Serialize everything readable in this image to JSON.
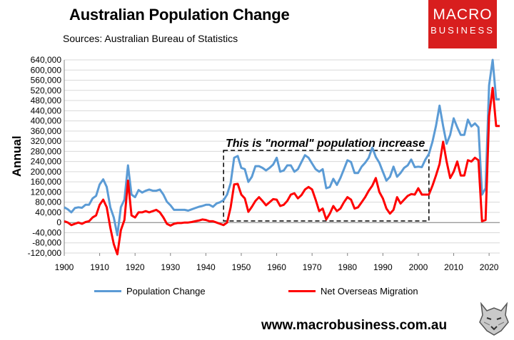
{
  "header": {
    "title": "Australian Population Change",
    "subtitle": "Sources: Australian Bureau of Statistics"
  },
  "logo": {
    "line1": "MACRO",
    "line2": "BUSINESS",
    "bg_color": "#d81e1e"
  },
  "footer": {
    "url": "www.macrobusiness.com.au"
  },
  "annotation": {
    "text": "This is \"normal\" population increase",
    "range": [
      1945,
      2003
    ]
  },
  "chart_data": {
    "type": "line",
    "title": "Australian Population Change",
    "ylabel": "Annual",
    "xlabel": "",
    "ylim": [
      -120000,
      640000
    ],
    "xlim": [
      1900,
      2023
    ],
    "y_ticks": [
      "640,000",
      "600,000",
      "560,000",
      "520,000",
      "480,000",
      "440,000",
      "400,000",
      "360,000",
      "320,000",
      "280,000",
      "240,000",
      "200,000",
      "160,000",
      "120,000",
      "80,000",
      "40,000",
      "0",
      "-40,000",
      "-80,000",
      "-120,000"
    ],
    "x_ticks": [
      "1900",
      "1910",
      "1920",
      "1930",
      "1940",
      "1950",
      "1960",
      "1970",
      "1980",
      "1990",
      "2000",
      "2010",
      "2020"
    ],
    "grid": "horizontal",
    "legend_position": "bottom",
    "x": [
      1900,
      1901,
      1902,
      1903,
      1904,
      1905,
      1906,
      1907,
      1908,
      1909,
      1910,
      1911,
      1912,
      1913,
      1914,
      1915,
      1916,
      1917,
      1918,
      1919,
      1920,
      1921,
      1922,
      1923,
      1924,
      1925,
      1926,
      1927,
      1928,
      1929,
      1930,
      1931,
      1932,
      1933,
      1934,
      1935,
      1936,
      1937,
      1938,
      1939,
      1940,
      1941,
      1942,
      1943,
      1944,
      1945,
      1946,
      1947,
      1948,
      1949,
      1950,
      1951,
      1952,
      1953,
      1954,
      1955,
      1956,
      1957,
      1958,
      1959,
      1960,
      1961,
      1962,
      1963,
      1964,
      1965,
      1966,
      1967,
      1968,
      1969,
      1970,
      1971,
      1972,
      1973,
      1974,
      1975,
      1976,
      1977,
      1978,
      1979,
      1980,
      1981,
      1982,
      1983,
      1984,
      1985,
      1986,
      1987,
      1988,
      1989,
      1990,
      1991,
      1992,
      1993,
      1994,
      1995,
      1996,
      1997,
      1998,
      1999,
      2000,
      2001,
      2002,
      2003,
      2004,
      2005,
      2006,
      2007,
      2008,
      2009,
      2010,
      2011,
      2012,
      2013,
      2014,
      2015,
      2016,
      2017,
      2018,
      2019,
      2020,
      2021,
      2022,
      2023
    ],
    "series": [
      {
        "name": "Population Change",
        "color": "#5b9bd5",
        "values": [
          60000,
          52000,
          40000,
          57000,
          60000,
          58000,
          70000,
          70000,
          95000,
          105000,
          150000,
          170000,
          140000,
          60000,
          20000,
          -50000,
          60000,
          90000,
          225000,
          110000,
          100000,
          128000,
          118000,
          125000,
          130000,
          125000,
          125000,
          130000,
          110000,
          82000,
          68000,
          50000,
          50000,
          50000,
          50000,
          47000,
          52000,
          57000,
          62000,
          65000,
          70000,
          70000,
          62000,
          75000,
          80000,
          88000,
          110000,
          155000,
          255000,
          262000,
          215000,
          210000,
          160000,
          180000,
          222000,
          222000,
          215000,
          205000,
          215000,
          228000,
          255000,
          200000,
          205000,
          225000,
          225000,
          200000,
          210000,
          238000,
          265000,
          255000,
          232000,
          210000,
          200000,
          210000,
          135000,
          140000,
          172000,
          148000,
          175000,
          210000,
          245000,
          238000,
          195000,
          195000,
          220000,
          235000,
          255000,
          295000,
          258000,
          235000,
          200000,
          165000,
          180000,
          220000,
          180000,
          195000,
          215000,
          225000,
          248000,
          218000,
          220000,
          218000,
          248000,
          270000,
          318000,
          380000,
          460000,
          380000,
          310000,
          345000,
          410000,
          375000,
          345000,
          345000,
          405000,
          378000,
          390000,
          375000,
          110000,
          135000,
          540000,
          640000,
          485000,
          485000
        ],
        "label_line": "Population Change"
      },
      {
        "name": "Net Overseas Migration",
        "color": "#ff0000",
        "values": [
          5000,
          0,
          -10000,
          -5000,
          0,
          -5000,
          2000,
          5000,
          20000,
          28000,
          70000,
          90000,
          60000,
          -20000,
          -85000,
          -125000,
          -30000,
          10000,
          165000,
          28000,
          20000,
          40000,
          40000,
          45000,
          40000,
          45000,
          50000,
          40000,
          20000,
          -5000,
          -12000,
          -5000,
          -2000,
          -2000,
          0,
          0,
          2000,
          5000,
          8000,
          12000,
          10000,
          5000,
          5000,
          0,
          -5000,
          -10000,
          0,
          60000,
          150000,
          152000,
          110000,
          95000,
          42000,
          62000,
          85000,
          100000,
          85000,
          68000,
          80000,
          92000,
          90000,
          65000,
          70000,
          85000,
          110000,
          115000,
          95000,
          108000,
          130000,
          140000,
          130000,
          90000,
          45000,
          55000,
          12000,
          35000,
          65000,
          45000,
          55000,
          80000,
          100000,
          90000,
          55000,
          60000,
          80000,
          100000,
          125000,
          145000,
          175000,
          120000,
          95000,
          55000,
          35000,
          50000,
          100000,
          75000,
          90000,
          105000,
          112000,
          110000,
          135000,
          110000,
          110000,
          110000,
          145000,
          185000,
          230000,
          318000,
          240000,
          175000,
          200000,
          240000,
          185000,
          185000,
          245000,
          240000,
          255000,
          245000,
          5000,
          10000,
          420000,
          530000,
          380000,
          380000
        ]
      }
    ]
  },
  "legend": {
    "items": [
      {
        "label": "Population Change",
        "color": "#5b9bd5"
      },
      {
        "label": "Net Overseas Migration",
        "color": "#ff0000"
      }
    ]
  }
}
